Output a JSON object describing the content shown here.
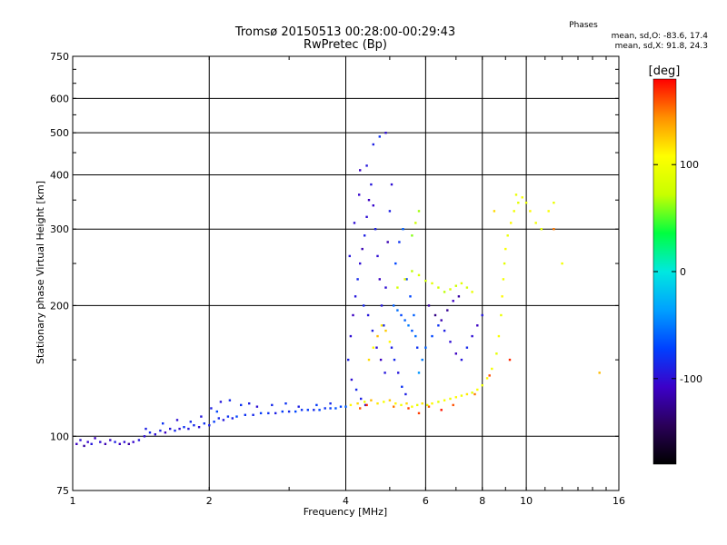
{
  "chart_data": {
    "type": "scatter",
    "title": "Tromsø 20150513 00:28:00-00:29:43",
    "subtitle": "RwPretec (Bp)",
    "stats": {
      "heading": "Phases",
      "line_o": "mean, sd,O: -83.6, 17.4",
      "line_x": "mean, sd,X:  91.8, 24.3"
    },
    "xlabel": "Frequency [MHz]",
    "ylabel": "Stationary phase Virtual Height [km]",
    "x_scale": "log",
    "y_scale": "log",
    "xlim": [
      1,
      16
    ],
    "ylim": [
      75,
      750
    ],
    "x_ticks": [
      1,
      2,
      4,
      6,
      8,
      10,
      16
    ],
    "y_ticks": [
      75,
      100,
      200,
      300,
      400,
      500,
      600,
      750
    ],
    "grid": true,
    "colorbar": {
      "label": "[deg]",
      "range": [
        -180,
        180
      ],
      "ticks": [
        100,
        0,
        -100
      ],
      "colors": [
        "#000000",
        "#2a0058",
        "#3c00c8",
        "#0040ff",
        "#00a0ff",
        "#00e8e0",
        "#00ff40",
        "#c8ff00",
        "#ffff00",
        "#ff9000",
        "#ff0000"
      ]
    },
    "series": [
      {
        "points": [
          [
            1.02,
            96,
            -110
          ],
          [
            1.04,
            98,
            -100
          ],
          [
            1.06,
            95,
            -120
          ],
          [
            1.08,
            97,
            -105
          ],
          [
            1.1,
            96,
            -95
          ],
          [
            1.12,
            99,
            -110
          ],
          [
            1.15,
            97,
            -100
          ],
          [
            1.18,
            96,
            -115
          ],
          [
            1.21,
            98,
            -105
          ],
          [
            1.24,
            97,
            -90
          ],
          [
            1.27,
            96,
            -110
          ],
          [
            1.3,
            97,
            -100
          ],
          [
            1.33,
            96,
            -120
          ],
          [
            1.36,
            97,
            -105
          ],
          [
            1.4,
            98,
            -95
          ],
          [
            1.44,
            100,
            -100
          ],
          [
            1.48,
            102,
            -85
          ],
          [
            1.52,
            101,
            -100
          ],
          [
            1.56,
            103,
            -90
          ],
          [
            1.6,
            102,
            -110
          ],
          [
            1.64,
            104,
            -95
          ],
          [
            1.68,
            103,
            -85
          ],
          [
            1.72,
            104,
            -100
          ],
          [
            1.76,
            105,
            -80
          ],
          [
            1.8,
            104,
            -95
          ],
          [
            1.85,
            106,
            -85
          ],
          [
            1.9,
            105,
            -100
          ],
          [
            1.95,
            107,
            -80
          ],
          [
            2.0,
            106,
            -90
          ],
          [
            2.05,
            108,
            -75
          ],
          [
            2.1,
            110,
            -85
          ],
          [
            2.15,
            109,
            -95
          ],
          [
            2.2,
            111,
            -80
          ],
          [
            2.25,
            110,
            -90
          ],
          [
            2.3,
            111,
            -70
          ],
          [
            2.4,
            112,
            -80
          ],
          [
            2.5,
            112,
            -85
          ],
          [
            2.6,
            113,
            -75
          ],
          [
            2.7,
            113,
            -80
          ],
          [
            2.8,
            113,
            -90
          ],
          [
            2.9,
            114,
            -75
          ],
          [
            3.0,
            114,
            -85
          ],
          [
            3.1,
            114,
            -70
          ],
          [
            3.2,
            115,
            -80
          ],
          [
            3.3,
            115,
            -75
          ],
          [
            3.4,
            115,
            -85
          ],
          [
            3.5,
            115,
            -70
          ],
          [
            3.6,
            116,
            -80
          ],
          [
            3.7,
            116,
            -75
          ],
          [
            3.8,
            116,
            -65
          ],
          [
            3.9,
            117,
            -70
          ],
          [
            4.0,
            117,
            -60
          ],
          [
            1.45,
            104,
            -90
          ],
          [
            1.58,
            107,
            -80
          ],
          [
            1.7,
            109,
            -100
          ],
          [
            1.82,
            108,
            -85
          ],
          [
            2.02,
            116,
            -90
          ],
          [
            2.12,
            120,
            -95
          ],
          [
            2.22,
            121,
            -85
          ],
          [
            2.35,
            118,
            -80
          ],
          [
            2.45,
            119,
            -90
          ],
          [
            2.55,
            117,
            -100
          ],
          [
            2.75,
            118,
            -85
          ],
          [
            2.95,
            119,
            -80
          ],
          [
            3.15,
            117,
            -90
          ],
          [
            3.45,
            118,
            -75
          ],
          [
            3.7,
            119,
            -85
          ],
          [
            2.08,
            114,
            -70
          ],
          [
            1.92,
            111,
            -95
          ],
          [
            4.05,
            150,
            -90
          ],
          [
            4.1,
            170,
            -100
          ],
          [
            4.15,
            190,
            -110
          ],
          [
            4.2,
            210,
            -95
          ],
          [
            4.25,
            230,
            -85
          ],
          [
            4.3,
            250,
            -100
          ],
          [
            4.35,
            270,
            -115
          ],
          [
            4.4,
            290,
            -90
          ],
          [
            4.45,
            320,
            -100
          ],
          [
            4.5,
            350,
            -110
          ],
          [
            4.55,
            380,
            -95
          ],
          [
            4.6,
            340,
            -105
          ],
          [
            4.65,
            300,
            -90
          ],
          [
            4.7,
            260,
            -100
          ],
          [
            4.75,
            230,
            -110
          ],
          [
            4.8,
            200,
            -95
          ],
          [
            4.85,
            180,
            -85
          ],
          [
            4.9,
            220,
            -100
          ],
          [
            4.95,
            280,
            -115
          ],
          [
            5.0,
            330,
            -90
          ],
          [
            5.05,
            380,
            -100
          ],
          [
            4.08,
            260,
            -95
          ],
          [
            4.18,
            310,
            -100
          ],
          [
            4.28,
            360,
            -105
          ],
          [
            4.38,
            200,
            -85
          ],
          [
            4.48,
            190,
            -95
          ],
          [
            4.58,
            175,
            -90
          ],
          [
            4.68,
            160,
            -100
          ],
          [
            4.78,
            150,
            -110
          ],
          [
            4.88,
            140,
            -95
          ],
          [
            4.12,
            135,
            -100
          ],
          [
            4.22,
            128,
            -85
          ],
          [
            4.32,
            122,
            -90
          ],
          [
            4.42,
            118,
            -95
          ],
          [
            5.1,
            200,
            -60
          ],
          [
            5.2,
            195,
            -55
          ],
          [
            5.3,
            190,
            -70
          ],
          [
            5.4,
            185,
            -60
          ],
          [
            5.5,
            180,
            -50
          ],
          [
            5.6,
            175,
            -65
          ],
          [
            5.7,
            170,
            -55
          ],
          [
            5.15,
            250,
            -70
          ],
          [
            5.25,
            280,
            -80
          ],
          [
            5.35,
            300,
            -60
          ],
          [
            5.45,
            230,
            -75
          ],
          [
            5.55,
            210,
            -70
          ],
          [
            5.65,
            190,
            -60
          ],
          [
            5.75,
            160,
            -80
          ],
          [
            5.05,
            160,
            -90
          ],
          [
            5.12,
            150,
            -85
          ],
          [
            5.22,
            140,
            -95
          ],
          [
            5.32,
            130,
            -80
          ],
          [
            5.42,
            125,
            -90
          ],
          [
            5.8,
            140,
            -40
          ],
          [
            5.9,
            150,
            -50
          ],
          [
            6.0,
            160,
            -60
          ],
          [
            6.2,
            170,
            -70
          ],
          [
            6.4,
            180,
            -80
          ],
          [
            6.6,
            175,
            -90
          ],
          [
            6.8,
            165,
            -100
          ],
          [
            7.0,
            155,
            -110
          ],
          [
            7.2,
            150,
            -95
          ],
          [
            7.4,
            160,
            -85
          ],
          [
            7.6,
            170,
            -100
          ],
          [
            7.8,
            180,
            -110
          ],
          [
            8.0,
            190,
            -95
          ],
          [
            6.1,
            200,
            -120
          ],
          [
            6.3,
            190,
            -130
          ],
          [
            6.5,
            185,
            -115
          ],
          [
            6.7,
            195,
            -125
          ],
          [
            6.9,
            205,
            -110
          ],
          [
            7.1,
            210,
            -120
          ],
          [
            4.6,
            470,
            -90
          ],
          [
            4.75,
            490,
            -80
          ],
          [
            4.9,
            500,
            -100
          ],
          [
            4.3,
            410,
            -110
          ],
          [
            4.45,
            420,
            -95
          ]
        ]
      },
      {
        "points": [
          [
            4.1,
            118,
            110
          ],
          [
            4.25,
            119,
            120
          ],
          [
            4.4,
            120,
            100
          ],
          [
            4.55,
            121,
            130
          ],
          [
            4.7,
            119,
            115
          ],
          [
            4.85,
            120,
            105
          ],
          [
            5.0,
            121,
            125
          ],
          [
            5.15,
            119,
            110
          ],
          [
            5.3,
            118,
            100
          ],
          [
            5.45,
            119,
            120
          ],
          [
            5.6,
            117,
            105
          ],
          [
            5.75,
            118,
            95
          ],
          [
            5.9,
            119,
            115
          ],
          [
            6.05,
            118,
            100
          ],
          [
            6.2,
            119,
            110
          ],
          [
            6.4,
            120,
            90
          ],
          [
            6.6,
            121,
            105
          ],
          [
            6.8,
            122,
            95
          ],
          [
            7.0,
            123,
            110
          ],
          [
            7.2,
            124,
            100
          ],
          [
            7.4,
            125,
            115
          ],
          [
            7.6,
            126,
            90
          ],
          [
            7.8,
            128,
            105
          ],
          [
            8.0,
            131,
            95
          ],
          [
            8.2,
            136,
            110
          ],
          [
            8.4,
            143,
            100
          ],
          [
            8.6,
            155,
            90
          ],
          [
            8.7,
            170,
            105
          ],
          [
            8.8,
            190,
            95
          ],
          [
            8.85,
            210,
            110
          ],
          [
            8.9,
            230,
            100
          ],
          [
            8.95,
            250,
            90
          ],
          [
            9.0,
            270,
            105
          ],
          [
            9.1,
            290,
            95
          ],
          [
            9.25,
            310,
            110
          ],
          [
            9.4,
            330,
            100
          ],
          [
            9.6,
            345,
            90
          ],
          [
            9.8,
            355,
            105
          ],
          [
            10.0,
            345,
            95
          ],
          [
            10.2,
            330,
            110
          ],
          [
            10.5,
            310,
            100
          ],
          [
            10.8,
            300,
            90
          ],
          [
            11.2,
            330,
            105
          ],
          [
            11.5,
            345,
            95
          ],
          [
            5.2,
            220,
            80
          ],
          [
            5.4,
            230,
            90
          ],
          [
            5.6,
            240,
            70
          ],
          [
            5.8,
            235,
            85
          ],
          [
            6.0,
            228,
            75
          ],
          [
            6.2,
            225,
            90
          ],
          [
            6.4,
            220,
            80
          ],
          [
            6.6,
            215,
            70
          ],
          [
            6.8,
            218,
            85
          ],
          [
            7.0,
            222,
            75
          ],
          [
            7.2,
            225,
            90
          ],
          [
            7.4,
            220,
            80
          ],
          [
            7.6,
            215,
            95
          ],
          [
            4.5,
            150,
            120
          ],
          [
            4.6,
            160,
            110
          ],
          [
            4.7,
            170,
            130
          ],
          [
            4.8,
            180,
            115
          ],
          [
            4.9,
            175,
            125
          ],
          [
            5.0,
            165,
            110
          ],
          [
            5.6,
            290,
            60
          ],
          [
            5.7,
            310,
            75
          ],
          [
            5.8,
            330,
            65
          ],
          [
            9.5,
            360,
            95
          ],
          [
            8.5,
            330,
            120
          ],
          [
            12.0,
            250,
            100
          ],
          [
            14.5,
            140,
            130
          ],
          [
            4.3,
            116,
            160
          ],
          [
            4.45,
            118,
            170
          ],
          [
            5.1,
            117,
            150
          ],
          [
            5.5,
            116,
            165
          ],
          [
            6.1,
            117,
            155
          ],
          [
            6.9,
            118,
            160
          ],
          [
            7.7,
            125,
            150
          ],
          [
            6.5,
            115,
            175
          ],
          [
            5.8,
            113,
            165
          ],
          [
            8.3,
            138,
            160
          ],
          [
            9.2,
            150,
            170
          ],
          [
            11.5,
            300,
            150
          ]
        ]
      }
    ]
  }
}
